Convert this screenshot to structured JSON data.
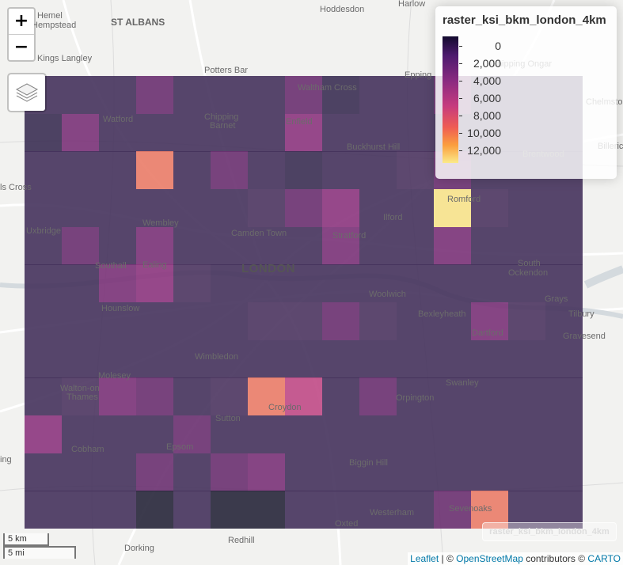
{
  "zoom": {
    "in_label": "+",
    "out_label": "−"
  },
  "legend": {
    "title": "raster_ksi_bkm_london_4km",
    "ticks": [
      "0",
      "2,000",
      "4,000",
      "6,000",
      "8,000",
      "10,000",
      "12,000"
    ],
    "colors": [
      "#130a2e",
      "#4d1a6e",
      "#8a2a80",
      "#c63a7e",
      "#ef5d53",
      "#fb9f3e",
      "#fbea8a"
    ]
  },
  "places": [
    {
      "name": "Hemel",
      "type": "small"
    },
    {
      "name": "Hempstead",
      "type": "small"
    },
    {
      "name": "ST ALBANS",
      "type": "mid"
    },
    {
      "name": "Hoddesdon",
      "type": "small"
    },
    {
      "name": "Harlow",
      "type": "small"
    },
    {
      "name": "Kings Langley",
      "type": "small"
    },
    {
      "name": "Potters Bar",
      "type": "small"
    },
    {
      "name": "Waltham Cross",
      "type": "small"
    },
    {
      "name": "Epping",
      "type": "small"
    },
    {
      "name": "Chipping Ongar",
      "type": "small"
    },
    {
      "name": "Brentwood",
      "type": "small"
    },
    {
      "name": "Billericay",
      "type": "small"
    },
    {
      "name": "Watford",
      "type": "small"
    },
    {
      "name": "Chipping",
      "type": "small"
    },
    {
      "name": "Barnet",
      "type": "small"
    },
    {
      "name": "Enfield",
      "type": "small"
    },
    {
      "name": "Buckhurst Hill",
      "type": "small"
    },
    {
      "name": "Romford",
      "type": "small"
    },
    {
      "name": "Ilford",
      "type": "small"
    },
    {
      "name": "Uxbridge",
      "type": "small"
    },
    {
      "name": "Wembley",
      "type": "small"
    },
    {
      "name": "Camden Town",
      "type": "small"
    },
    {
      "name": "Stratford",
      "type": "small"
    },
    {
      "name": "Southall",
      "type": "small"
    },
    {
      "name": "Ealing",
      "type": "small"
    },
    {
      "name": "LONDON",
      "type": "big"
    },
    {
      "name": "South",
      "type": "small"
    },
    {
      "name": "Ockendon",
      "type": "small"
    },
    {
      "name": "Woolwich",
      "type": "small"
    },
    {
      "name": "Hounslow",
      "type": "small"
    },
    {
      "name": "Grays",
      "type": "small"
    },
    {
      "name": "Bexleyheath",
      "type": "small"
    },
    {
      "name": "Tilbury",
      "type": "small"
    },
    {
      "name": "Dartford",
      "type": "small"
    },
    {
      "name": "Gravesend",
      "type": "small"
    },
    {
      "name": "Wimbledon",
      "type": "small"
    },
    {
      "name": "Molesey",
      "type": "small"
    },
    {
      "name": "Swanley",
      "type": "small"
    },
    {
      "name": "Walton-on",
      "type": "small"
    },
    {
      "name": "Thames",
      "type": "small"
    },
    {
      "name": "Croydon",
      "type": "small"
    },
    {
      "name": "Orpington",
      "type": "small"
    },
    {
      "name": "Sutton",
      "type": "small"
    },
    {
      "name": "Cobham",
      "type": "small"
    },
    {
      "name": "Epsom",
      "type": "small"
    },
    {
      "name": "Biggin Hill",
      "type": "small"
    },
    {
      "name": "Westerham",
      "type": "small"
    },
    {
      "name": "Sevenoaks",
      "type": "small"
    },
    {
      "name": "Oxted",
      "type": "small"
    },
    {
      "name": "Dorking",
      "type": "small"
    },
    {
      "name": "Redhill",
      "type": "small"
    },
    {
      "name": "ls Cross",
      "type": "small"
    },
    {
      "name": "ing",
      "type": "small"
    },
    {
      "name": "Chelmstone",
      "type": "small"
    }
  ],
  "raster": {
    "name": "raster_ksi_bkm_london_4km",
    "cols": 15,
    "rows": 12,
    "colors": {
      "d": "#3b2f53",
      "m": "#45325c",
      "n": "#4d3560",
      "p": "#6a3070",
      "q": "#7a3278",
      "r": "#8c357e",
      "s": "#a13a82",
      "o": "#ea7c68",
      "y": "#f7e28b",
      "k": "#27263a",
      "t": "#c04a86"
    },
    "grid": [
      "mmmpmmmpdmmpmmm",
      "dqmmmmmrmmmmmmm",
      "mmmompmdmmnpmmm",
      "mmmmmmnprmmynmm",
      "mpmqmmmmqmmqmmm",
      "mmqrnmmmmmmmmmm",
      "mmmmmmnnpnmmqnm",
      "mmmmmmmmmmmmmmm",
      "mnqpmnotmpmmmmm",
      "rmmmpmmmmmmmmmm",
      "mmmpmpqmmmmmmmm",
      "mmmkmkkmmmmpomm"
    ]
  },
  "scale": {
    "km": "5 km",
    "mi": "5 mi"
  },
  "attribution": {
    "leaflet": "Leaflet",
    "sep1": " | © ",
    "osm": "OpenStreetMap",
    "mid": " contributors © ",
    "carto": "CARTO"
  }
}
